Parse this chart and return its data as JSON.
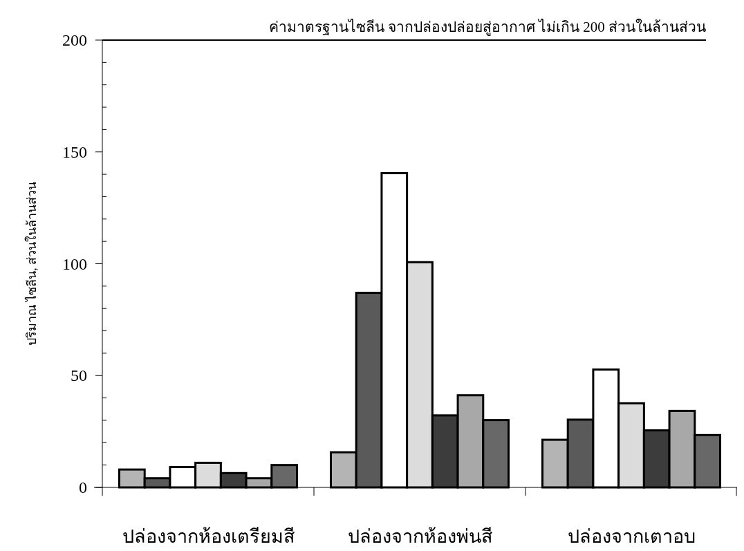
{
  "chart_data": {
    "type": "bar",
    "ylabel": "ปริมาณ ไซลีน, ส่วนในล้านส่วน",
    "categories": [
      "ปล่องจากห้องเตรียมสี",
      "ปล่องจากห้องพ่นสี",
      "ปล่องจากเตาอบ"
    ],
    "series": [
      {
        "color": "#b4b4b4",
        "values": [
          8,
          15.7,
          21.3
        ]
      },
      {
        "color": "#5a5a5a",
        "values": [
          4.1,
          87,
          30.3
        ]
      },
      {
        "color": "#ffffff",
        "values": [
          9.1,
          140.5,
          52.7
        ]
      },
      {
        "color": "#dcdcdc",
        "values": [
          11,
          100.7,
          37.6
        ]
      },
      {
        "color": "#3c3c3c",
        "values": [
          6.4,
          32.2,
          25.5
        ]
      },
      {
        "color": "#a8a8a8",
        "values": [
          4.1,
          41.2,
          34.2
        ]
      },
      {
        "color": "#686868",
        "values": [
          10,
          30.1,
          23.4
        ]
      }
    ],
    "ylim": [
      0,
      200
    ],
    "yticks": [
      0,
      {
        "value": 10,
        "label": null
      },
      {
        "value": 20,
        "label": null
      },
      {
        "value": 30,
        "label": null
      },
      {
        "value": 40,
        "label": null
      },
      50,
      {
        "value": 60,
        "label": null
      },
      {
        "value": 70,
        "label": null
      },
      {
        "value": 80,
        "label": null
      },
      {
        "value": 90,
        "label": null
      },
      100,
      {
        "value": 110,
        "label": null
      },
      {
        "value": 120,
        "label": null
      },
      {
        "value": 130,
        "label": null
      },
      {
        "value": 140,
        "label": null
      },
      150,
      {
        "value": 160,
        "label": null
      },
      {
        "value": 170,
        "label": null
      },
      {
        "value": 180,
        "label": null
      },
      {
        "value": 190,
        "label": null
      },
      200
    ],
    "ref_lines": [
      {
        "axis": "y",
        "value": 200,
        "label": "ค่ามาตรฐานไซลีน จากปล่องปล่อยสู่อากาศ ไม่เกิน 200 ส่วนในล้านส่วน",
        "color": "#000000"
      }
    ]
  }
}
